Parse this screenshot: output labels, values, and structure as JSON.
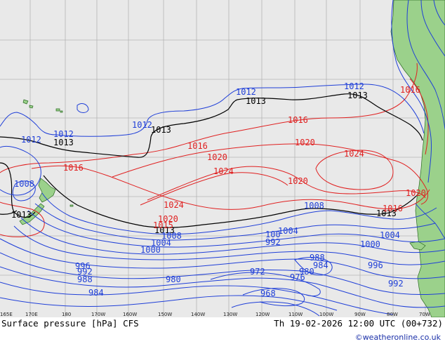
{
  "chart_title": "Surface pressure [hPa] CFS",
  "valid_time": "Th 19-02-2026 12:00 UTC (00+732)",
  "credit": "©weatheronline.co.uk",
  "longitude_labels": [
    "165E",
    "170E",
    "180",
    "170W",
    "160W",
    "150W",
    "140W",
    "130W",
    "120W",
    "110W",
    "100W",
    "90W",
    "80W",
    "70W"
  ],
  "colors": {
    "ocean": "#e9e9e9",
    "land": "#9bd18b",
    "grid": "#b5b5b5",
    "isobar_low": "#1f3fd8",
    "isobar_high": "#e02020",
    "isobar_ref": "#000000"
  },
  "isobar_labels": [
    {
      "text": "1012",
      "kind": "low"
    },
    {
      "text": "1012",
      "kind": "low"
    },
    {
      "text": "1012",
      "kind": "low"
    },
    {
      "text": "1012",
      "kind": "low"
    },
    {
      "text": "1012",
      "kind": "low"
    },
    {
      "text": "1013",
      "kind": "ref"
    },
    {
      "text": "1013",
      "kind": "ref"
    },
    {
      "text": "1013",
      "kind": "ref"
    },
    {
      "text": "1013",
      "kind": "ref"
    },
    {
      "text": "1013",
      "kind": "ref"
    },
    {
      "text": "1013",
      "kind": "ref"
    },
    {
      "text": "1013",
      "kind": "ref"
    },
    {
      "text": "1016",
      "kind": "high"
    },
    {
      "text": "1016",
      "kind": "high"
    },
    {
      "text": "1016",
      "kind": "high"
    },
    {
      "text": "1016",
      "kind": "high"
    },
    {
      "text": "1016",
      "kind": "high"
    },
    {
      "text": "1020",
      "kind": "high"
    },
    {
      "text": "1020",
      "kind": "high"
    },
    {
      "text": "1020",
      "kind": "high"
    },
    {
      "text": "1020",
      "kind": "high"
    },
    {
      "text": "1020",
      "kind": "high"
    },
    {
      "text": "1024",
      "kind": "high"
    },
    {
      "text": "1024",
      "kind": "high"
    },
    {
      "text": "1024",
      "kind": "high"
    },
    {
      "text": "1008",
      "kind": "low"
    },
    {
      "text": "1008",
      "kind": "low"
    },
    {
      "text": "1008",
      "kind": "low"
    },
    {
      "text": "1004",
      "kind": "low"
    },
    {
      "text": "1004",
      "kind": "low"
    },
    {
      "text": "1004",
      "kind": "low"
    },
    {
      "text": "1000",
      "kind": "low"
    },
    {
      "text": "1000",
      "kind": "low"
    },
    {
      "text": "996",
      "kind": "low"
    },
    {
      "text": "996",
      "kind": "low"
    },
    {
      "text": "992",
      "kind": "low"
    },
    {
      "text": "992",
      "kind": "low"
    },
    {
      "text": "988",
      "kind": "low"
    },
    {
      "text": "988",
      "kind": "low"
    },
    {
      "text": "984",
      "kind": "low"
    },
    {
      "text": "984",
      "kind": "low"
    },
    {
      "text": "980",
      "kind": "low"
    },
    {
      "text": "980",
      "kind": "low"
    },
    {
      "text": "976",
      "kind": "low"
    },
    {
      "text": "972",
      "kind": "low"
    },
    {
      "text": "968",
      "kind": "low"
    },
    {
      "text": "1015",
      "kind": "high"
    },
    {
      "text": "100",
      "kind": "low"
    },
    {
      "text": "992",
      "kind": "low"
    }
  ]
}
